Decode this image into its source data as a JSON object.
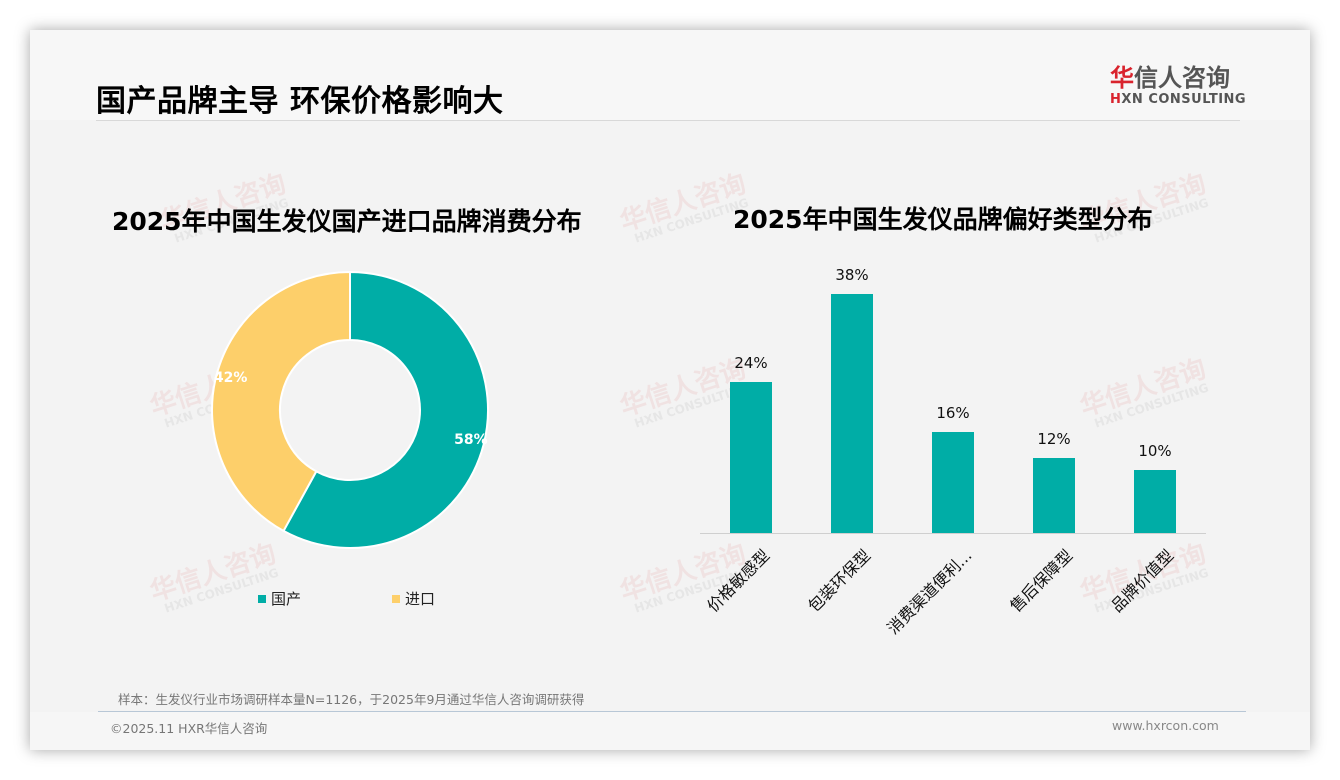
{
  "page": {
    "title": "国产品牌主导 环保价格影响大",
    "logo": {
      "cn_red": "华",
      "cn_rest": "信人咨询",
      "en_red": "H",
      "en_rest": "XN CONSULTING"
    },
    "sample_note": "样本：生发仪行业市场调研样本量N=1126，于2025年9月通过华信人咨询调研获得",
    "copyright": "©2025.11 HXR华信人咨询",
    "site_url": "www.hxrcon.com",
    "watermark": {
      "cn": "华信人咨询",
      "en": "HXN CONSULTING"
    }
  },
  "colors": {
    "teal": "#00ada6",
    "yellow": "#fdcf6a"
  },
  "chart_data": [
    {
      "type": "pie",
      "variant": "donut",
      "title": "2025年中国生发仪国产进口品牌消费分布",
      "categories": [
        "国产",
        "进口"
      ],
      "values": [
        58,
        42
      ],
      "labels": [
        "58%",
        "42%"
      ],
      "colors": [
        "#00ada6",
        "#fdcf6a"
      ],
      "legend_position": "bottom"
    },
    {
      "type": "bar",
      "title": "2025年中国生发仪品牌偏好类型分布",
      "categories": [
        "价格敏感型",
        "包装环保型",
        "消费渠道便利...",
        "售后保障型",
        "品牌价值型"
      ],
      "values": [
        24,
        38,
        16,
        12,
        10
      ],
      "labels": [
        "24%",
        "38%",
        "16%",
        "12%",
        "10%"
      ],
      "xlabel": "",
      "ylabel": "",
      "grid": false,
      "color": "#00ada6"
    }
  ]
}
